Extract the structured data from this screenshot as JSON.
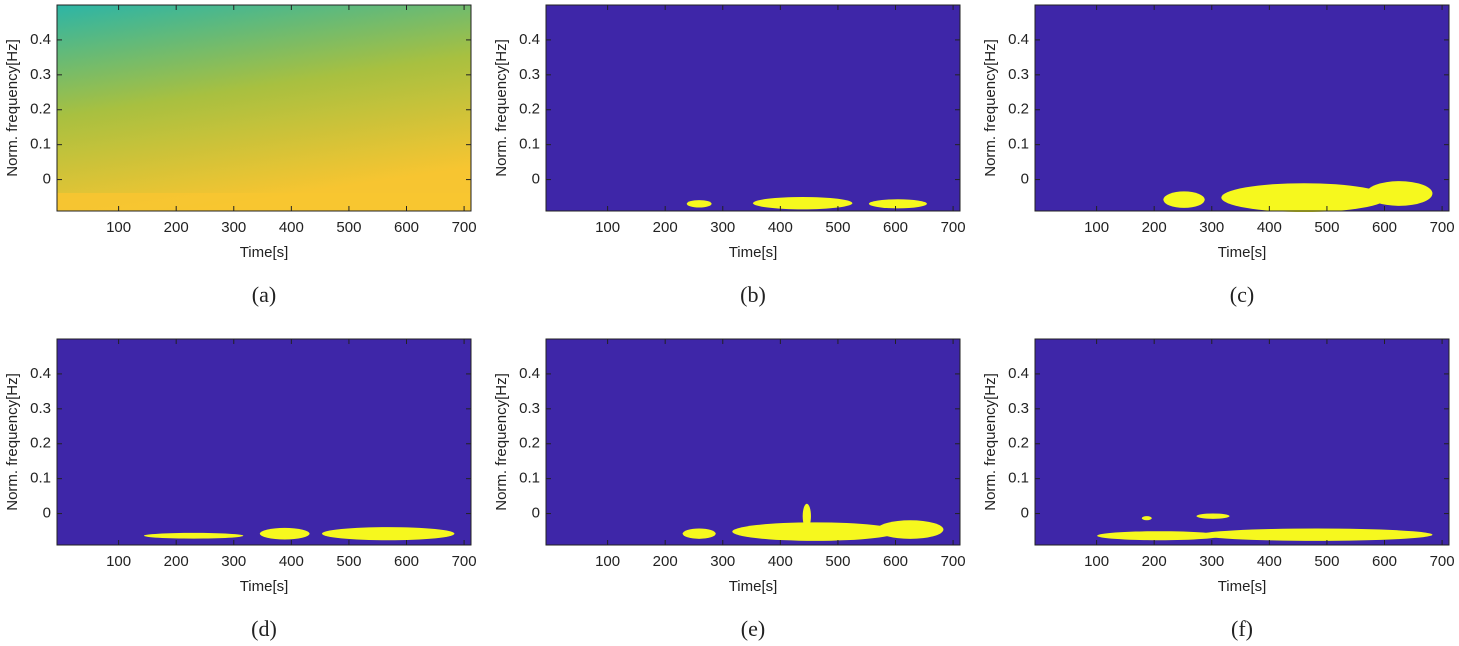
{
  "chart_data": [
    {
      "type": "heatmap",
      "caption": "(a)",
      "x_label": "Time[s]",
      "y_label": "Norm. frequency[Hz]",
      "xlim": [
        -7,
        712
      ],
      "ylim": [
        -0.09,
        0.5
      ],
      "xticks": [
        100,
        200,
        300,
        400,
        500,
        600,
        700
      ],
      "yticks": [
        0,
        0.1,
        0.2,
        0.3,
        0.4
      ],
      "colors": [
        "#2cb5a6",
        "#a8c040",
        "#f7c531"
      ]
    },
    {
      "type": "heatmap",
      "caption": "(b)",
      "x_label": "Time[s]",
      "y_label": "Norm. frequency[Hz]",
      "xlim": [
        -7,
        712
      ],
      "ylim": [
        -0.09,
        0.5
      ],
      "xticks": [
        100,
        200,
        300,
        400,
        500,
        600,
        700
      ],
      "yticks": [
        0,
        0.1,
        0.2,
        0.3,
        0.4
      ],
      "colors": [
        "#3e26a8",
        "#f6f81e"
      ]
    },
    {
      "type": "heatmap",
      "caption": "(c)",
      "x_label": "Time[s]",
      "y_label": "Norm. frequency[Hz]",
      "xlim": [
        -7,
        712
      ],
      "ylim": [
        -0.09,
        0.5
      ],
      "xticks": [
        100,
        200,
        300,
        400,
        500,
        600,
        700
      ],
      "yticks": [
        0,
        0.1,
        0.2,
        0.3,
        0.4
      ],
      "colors": [
        "#3e26a8",
        "#f6f81e"
      ]
    },
    {
      "type": "heatmap",
      "caption": "(d)",
      "x_label": "Time[s]",
      "y_label": "Norm. frequency[Hz]",
      "xlim": [
        -7,
        712
      ],
      "ylim": [
        -0.09,
        0.5
      ],
      "xticks": [
        100,
        200,
        300,
        400,
        500,
        600,
        700
      ],
      "yticks": [
        0,
        0.1,
        0.2,
        0.3,
        0.4
      ],
      "colors": [
        "#3e26a8",
        "#f6f81e"
      ]
    },
    {
      "type": "heatmap",
      "caption": "(e)",
      "x_label": "Time[s]",
      "y_label": "Norm. frequency[Hz]",
      "xlim": [
        -7,
        712
      ],
      "ylim": [
        -0.09,
        0.5
      ],
      "xticks": [
        100,
        200,
        300,
        400,
        500,
        600,
        700
      ],
      "yticks": [
        0,
        0.1,
        0.2,
        0.3,
        0.4
      ],
      "colors": [
        "#3e26a8",
        "#f6f81e"
      ]
    },
    {
      "type": "heatmap",
      "caption": "(f)",
      "x_label": "Time[s]",
      "y_label": "Norm. frequency[Hz]",
      "xlim": [
        -7,
        712
      ],
      "ylim": [
        -0.09,
        0.5
      ],
      "xticks": [
        100,
        200,
        300,
        400,
        500,
        600,
        700
      ],
      "yticks": [
        0,
        0.1,
        0.2,
        0.3,
        0.4
      ],
      "colors": [
        "#3e26a8",
        "#f6f81e"
      ]
    }
  ]
}
